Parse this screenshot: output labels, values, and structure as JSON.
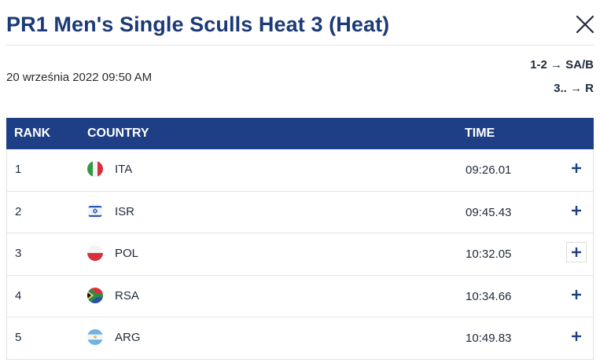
{
  "header": {
    "title": "PR1 Men's Single Sculls Heat 3 (Heat)",
    "close_icon": "close-icon"
  },
  "info": {
    "datetime": "20 września 2022 09:50 AM",
    "qualification": [
      {
        "rule": "1-2 → SA/B"
      },
      {
        "rule": "3.. → R"
      }
    ]
  },
  "colors": {
    "title": "#1b3a78",
    "table_header_bg": "#1e3e85",
    "table_header_text": "#ffffff"
  },
  "table": {
    "columns": {
      "rank": "RANK",
      "country": "COUNTRY",
      "time": "TIME"
    },
    "rows": [
      {
        "rank": "1",
        "country": "ITA",
        "flag": "italy-flag-icon",
        "time": "09:26.01",
        "expand_icon": "plus-icon"
      },
      {
        "rank": "2",
        "country": "ISR",
        "flag": "israel-flag-icon",
        "time": "09:45.43",
        "expand_icon": "plus-icon"
      },
      {
        "rank": "3",
        "country": "POL",
        "flag": "poland-flag-icon",
        "time": "10:32.05",
        "expand_icon": "plus-icon"
      },
      {
        "rank": "4",
        "country": "RSA",
        "flag": "south-africa-flag-icon",
        "time": "10:34.66",
        "expand_icon": "plus-icon"
      },
      {
        "rank": "5",
        "country": "ARG",
        "flag": "argentina-flag-icon",
        "time": "10:49.83",
        "expand_icon": "plus-icon"
      }
    ]
  }
}
